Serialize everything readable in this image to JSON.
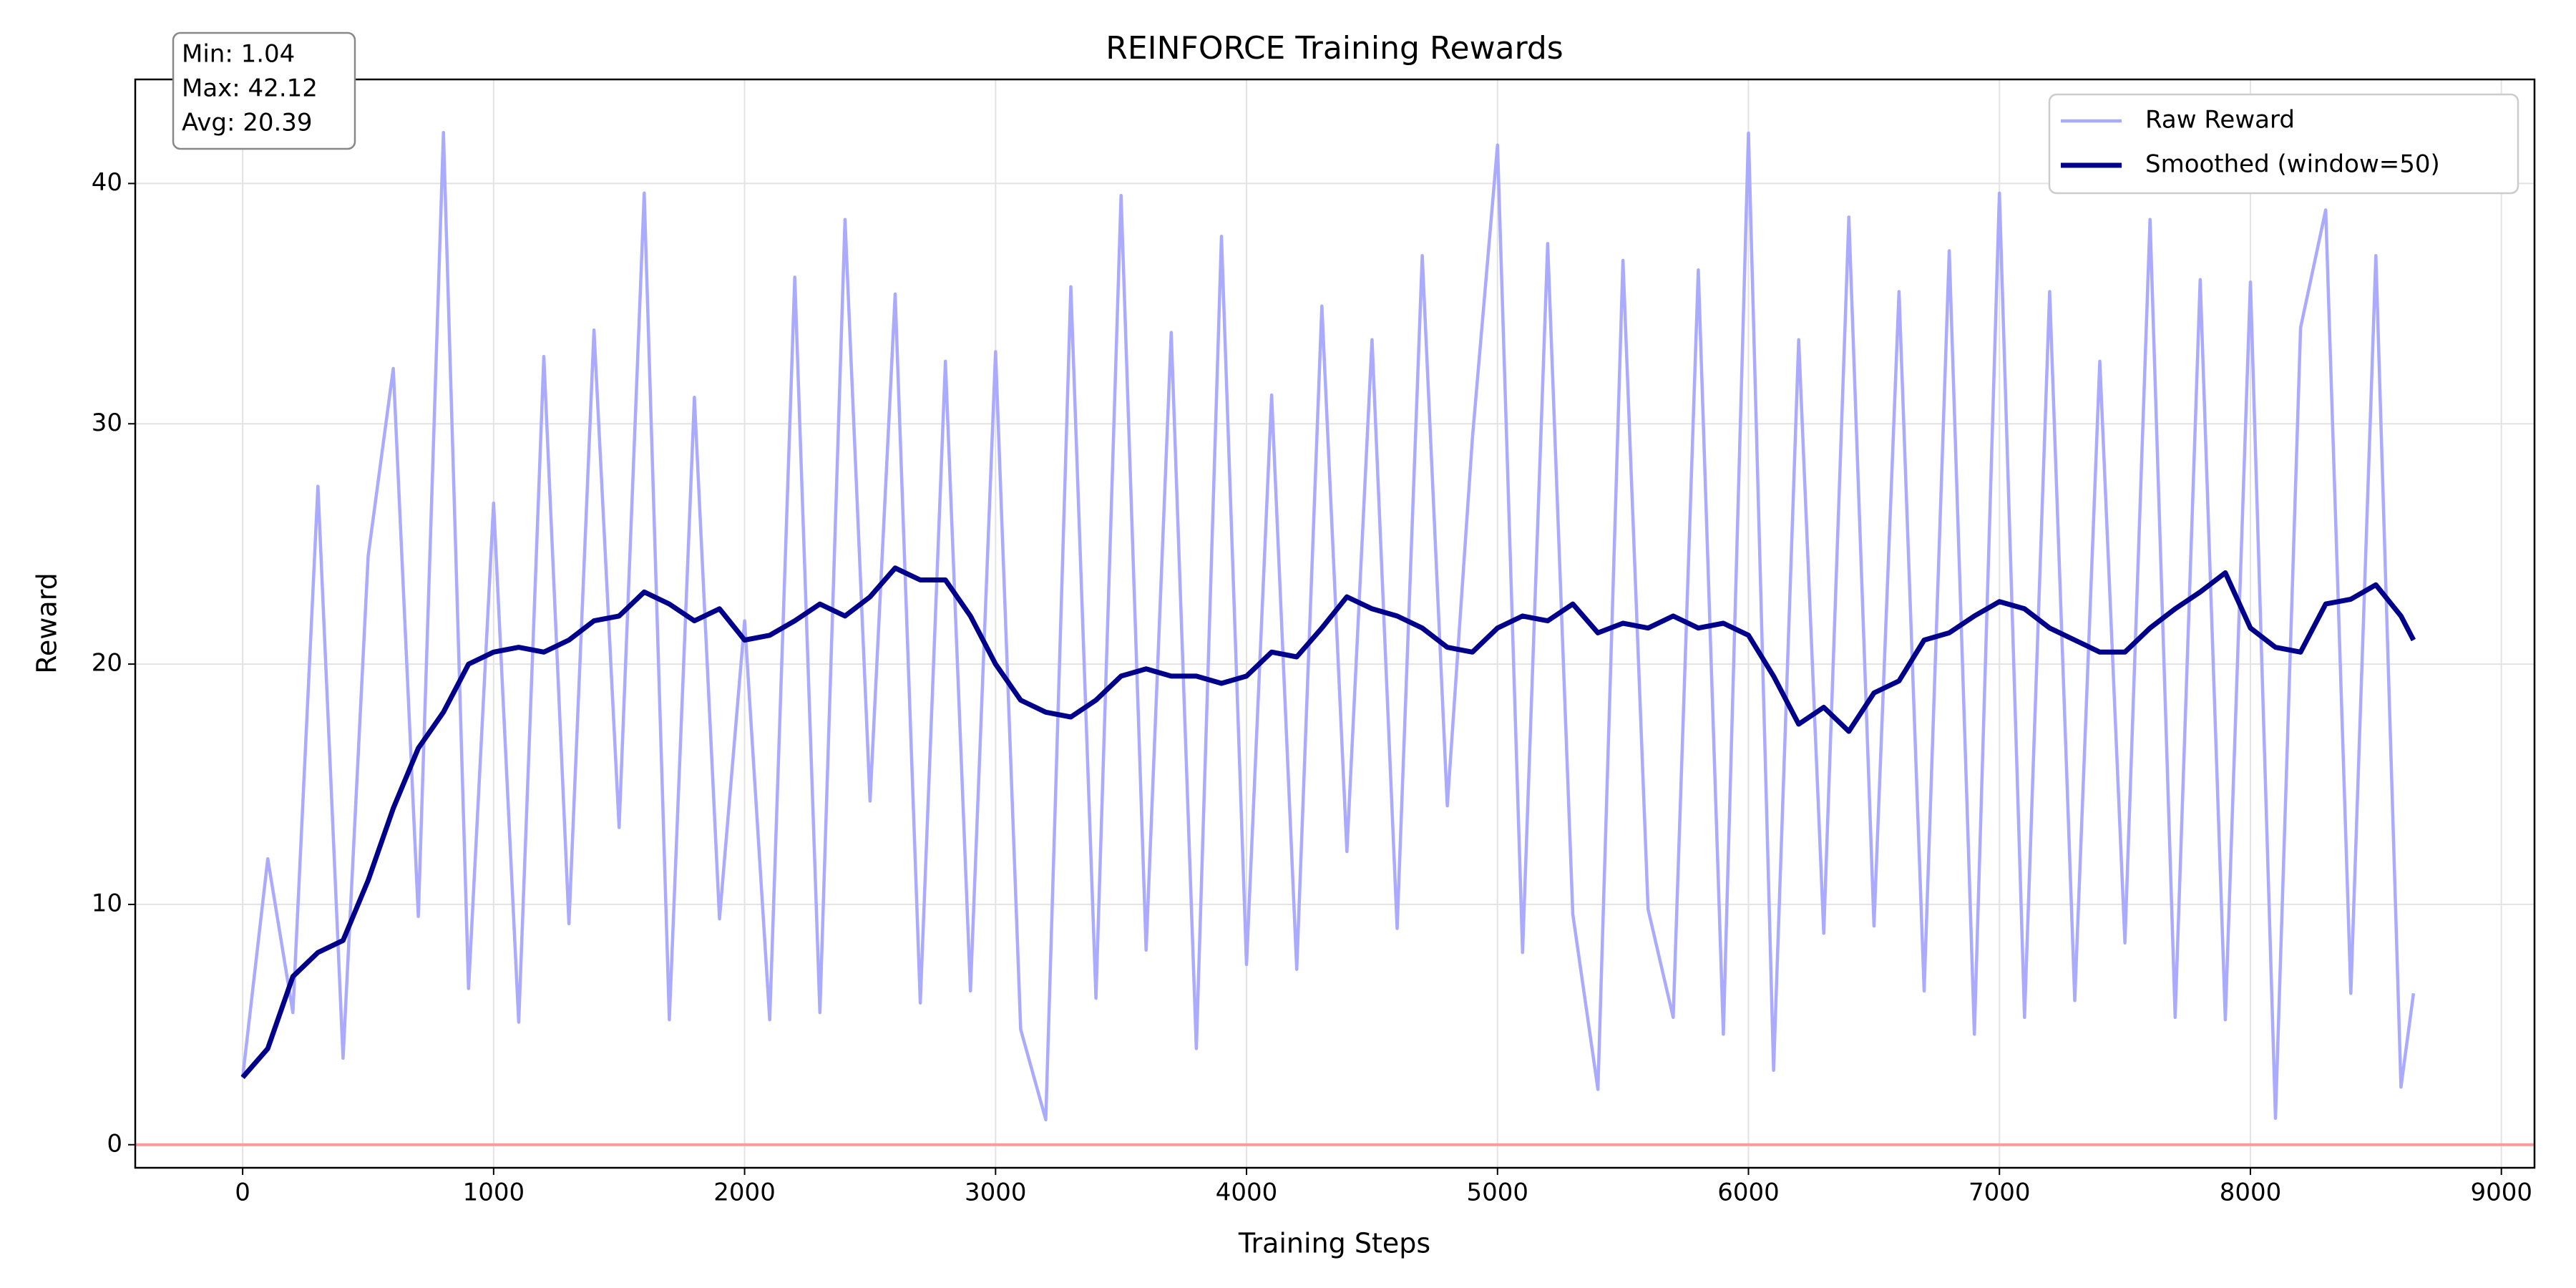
{
  "chart_data": {
    "type": "line",
    "title": "REINFORCE Training Rewards",
    "x_label": "Training Steps",
    "y_label": "Reward",
    "annotations": [
      "Min: 1.04",
      "Max: 42.12",
      "Avg: 20.39"
    ],
    "x": [
      0,
      100,
      200,
      300,
      400,
      500,
      600,
      700,
      800,
      900,
      1000,
      1100,
      1200,
      1300,
      1400,
      1500,
      1600,
      1700,
      1800,
      1900,
      2000,
      2100,
      2200,
      2300,
      2400,
      2500,
      2600,
      2700,
      2800,
      2900,
      3000,
      3100,
      3200,
      3300,
      3400,
      3500,
      3600,
      3700,
      3800,
      3900,
      4000,
      4100,
      4200,
      4300,
      4400,
      4500,
      4600,
      4700,
      4800,
      4900,
      5000,
      5100,
      5200,
      5300,
      5400,
      5500,
      5600,
      5700,
      5800,
      5900,
      6000,
      6100,
      6200,
      6300,
      6400,
      6500,
      6600,
      6700,
      6800,
      6900,
      7000,
      7100,
      7200,
      7300,
      7400,
      7500,
      7600,
      7700,
      7800,
      7900,
      8000,
      8100,
      8200,
      8300,
      8400,
      8500,
      8600,
      8650
    ],
    "series": [
      {
        "name": "Raw Reward",
        "color": "#aaaaff",
        "width": 4.5,
        "values": [
          2.8,
          11.9,
          5.5,
          27.4,
          3.6,
          24.5,
          32.3,
          9.5,
          42.12,
          6.5,
          26.7,
          5.1,
          32.8,
          9.2,
          33.9,
          13.2,
          39.6,
          5.2,
          31.1,
          9.4,
          21.8,
          5.2,
          36.1,
          5.5,
          38.5,
          14.3,
          35.4,
          5.9,
          32.6,
          6.4,
          33,
          4.8,
          1.04,
          35.7,
          6.1,
          39.5,
          8.1,
          33.8,
          4,
          37.8,
          7.5,
          31.2,
          7.3,
          34.9,
          12.2,
          33.5,
          9,
          37,
          14.1,
          29.4,
          41.6,
          8,
          37.5,
          9.6,
          2.3,
          36.8,
          9.8,
          5.3,
          36.4,
          4.6,
          42.1,
          3.1,
          33.5,
          8.8,
          38.6,
          9.1,
          35.5,
          6.4,
          37.2,
          4.6,
          39.6,
          5.3,
          35.5,
          6,
          32.6,
          8.4,
          38.5,
          5.3,
          36,
          5.2,
          35.9,
          1.1,
          34,
          38.9,
          6.3,
          37,
          2.4,
          6.3
        ]
      },
      {
        "name": "Smoothed (window=50)",
        "color": "#00008b",
        "width": 7,
        "values": [
          2.8,
          4,
          7,
          8,
          8.5,
          11,
          14,
          16.5,
          18,
          20,
          20.5,
          20.7,
          20.5,
          21,
          21.8,
          22,
          23,
          22.5,
          21.8,
          22.3,
          21,
          21.2,
          21.8,
          22.5,
          22,
          22.8,
          24,
          23.5,
          23.5,
          22,
          20,
          18.5,
          18,
          17.8,
          18.5,
          19.5,
          19.8,
          19.5,
          19.5,
          19.2,
          19.5,
          20.5,
          20.3,
          21.5,
          22.8,
          22.3,
          22,
          21.5,
          20.7,
          20.5,
          21.5,
          22,
          21.8,
          22.5,
          21.3,
          21.7,
          21.5,
          22,
          21.5,
          21.7,
          21.2,
          19.5,
          17.5,
          18.2,
          17.2,
          18.8,
          19.3,
          21,
          21.3,
          22,
          22.6,
          22.3,
          21.5,
          21,
          20.5,
          20.5,
          21.5,
          22.3,
          23,
          23.8,
          21.5,
          20.7,
          20.5,
          22.5,
          22.7,
          23.3,
          22,
          21
        ]
      }
    ],
    "hline": {
      "value": 0,
      "color": "#ff9999"
    },
    "xlim": [
      -428,
      9132
    ],
    "ylim": [
      -0.96,
      44.33
    ],
    "xticks": [
      0,
      1000,
      2000,
      3000,
      4000,
      5000,
      6000,
      7000,
      8000,
      9000
    ],
    "yticks": [
      0,
      10,
      20,
      30,
      40
    ],
    "grid": true,
    "legend": "upper right"
  }
}
